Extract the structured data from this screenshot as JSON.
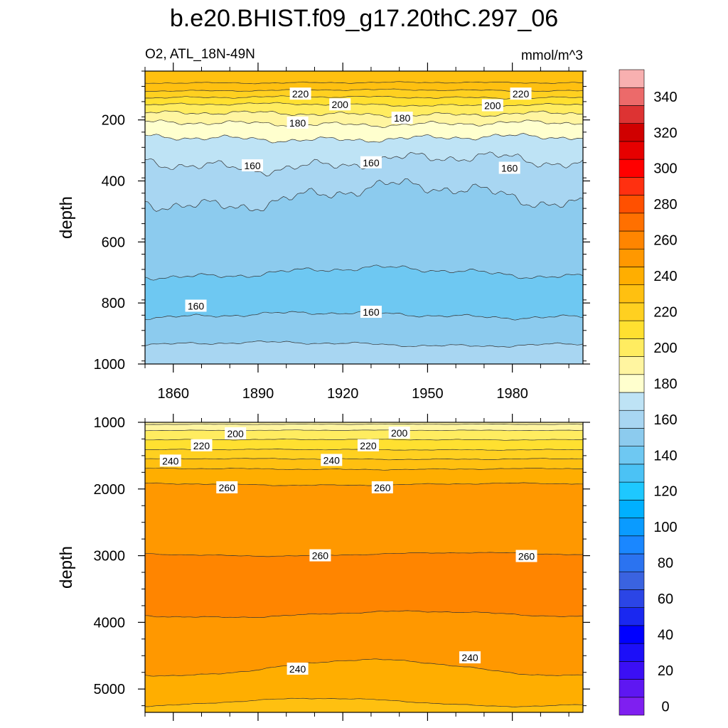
{
  "title": "b.e20.BHIST.f09_g17.20thC.297_06",
  "chart_data": {
    "type": "heatmap",
    "variable_label": "O2, ATL_18N-49N",
    "units": "mmol/m^3",
    "colorbar": {
      "levels": [
        0,
        10,
        20,
        30,
        40,
        50,
        60,
        70,
        80,
        90,
        100,
        110,
        120,
        130,
        140,
        150,
        160,
        170,
        180,
        190,
        200,
        210,
        220,
        230,
        240,
        250,
        260,
        270,
        280,
        290,
        300,
        310,
        320,
        330,
        340,
        350
      ],
      "tick_labels": [
        "0",
        "20",
        "40",
        "60",
        "80",
        "100",
        "120",
        "140",
        "160",
        "180",
        "200",
        "220",
        "240",
        "260",
        "280",
        "300",
        "320",
        "340"
      ],
      "colors": [
        "#7f1ff0",
        "#5e17f2",
        "#3b0ff5",
        "#1c0ff8",
        "#0000ff",
        "#1a28f0",
        "#2b45e6",
        "#3a63e0",
        "#2b73f0",
        "#1a87ff",
        "#0a9bff",
        "#00b0ff",
        "#1ec8ff",
        "#4bc2f5",
        "#6ec8f2",
        "#8ccbee",
        "#a8d6f2",
        "#bee3f5",
        "#ffffce",
        "#fff5a0",
        "#ffec60",
        "#ffe030",
        "#ffd020",
        "#ffc010",
        "#ffae00",
        "#ff9800",
        "#ff8500",
        "#ff7000",
        "#ff5000",
        "#ff3010",
        "#ff0000",
        "#e60000",
        "#d00000",
        "#dd3333",
        "#ec6a6a",
        "#f8b0b0"
      ]
    },
    "panels": [
      {
        "name": "upper",
        "ylabel": "depth",
        "ylim": [
          1000,
          40
        ],
        "yticks": [
          200,
          400,
          600,
          800,
          1000
        ],
        "xlim": [
          1850,
          2005
        ],
        "xticks": [
          1860,
          1890,
          1920,
          1950,
          1980
        ],
        "contour_labels": [
          {
            "text": "220",
            "x": 1905,
            "y": 115
          },
          {
            "text": "220",
            "x": 1983,
            "y": 115
          },
          {
            "text": "200",
            "x": 1919,
            "y": 150
          },
          {
            "text": "200",
            "x": 1973,
            "y": 153
          },
          {
            "text": "180",
            "x": 1904,
            "y": 210
          },
          {
            "text": "180",
            "x": 1941,
            "y": 194
          },
          {
            "text": "160",
            "x": 1888,
            "y": 350
          },
          {
            "text": "160",
            "x": 1930,
            "y": 340
          },
          {
            "text": "160",
            "x": 1979,
            "y": 358
          },
          {
            "text": "160",
            "x": 1868,
            "y": 810
          },
          {
            "text": "160",
            "x": 1930,
            "y": 830
          }
        ]
      },
      {
        "name": "lower",
        "ylabel": "depth",
        "ylim": [
          5350,
          1000
        ],
        "yticks": [
          1000,
          2000,
          3000,
          4000,
          5000
        ],
        "xlim": [
          1850,
          2005
        ],
        "xticks": [
          1860,
          1890,
          1920,
          1950,
          1980
        ],
        "contour_labels": [
          {
            "text": "200",
            "x": 1882,
            "y": 1170
          },
          {
            "text": "200",
            "x": 1940,
            "y": 1160
          },
          {
            "text": "220",
            "x": 1870,
            "y": 1350
          },
          {
            "text": "220",
            "x": 1929,
            "y": 1350
          },
          {
            "text": "240",
            "x": 1859,
            "y": 1580
          },
          {
            "text": "240",
            "x": 1916,
            "y": 1570
          },
          {
            "text": "260",
            "x": 1879,
            "y": 1980
          },
          {
            "text": "260",
            "x": 1934,
            "y": 1980
          },
          {
            "text": "260",
            "x": 1912,
            "y": 3000
          },
          {
            "text": "260",
            "x": 1985,
            "y": 3010
          },
          {
            "text": "240",
            "x": 1904,
            "y": 4700
          },
          {
            "text": "240",
            "x": 1965,
            "y": 4530
          }
        ]
      }
    ]
  }
}
